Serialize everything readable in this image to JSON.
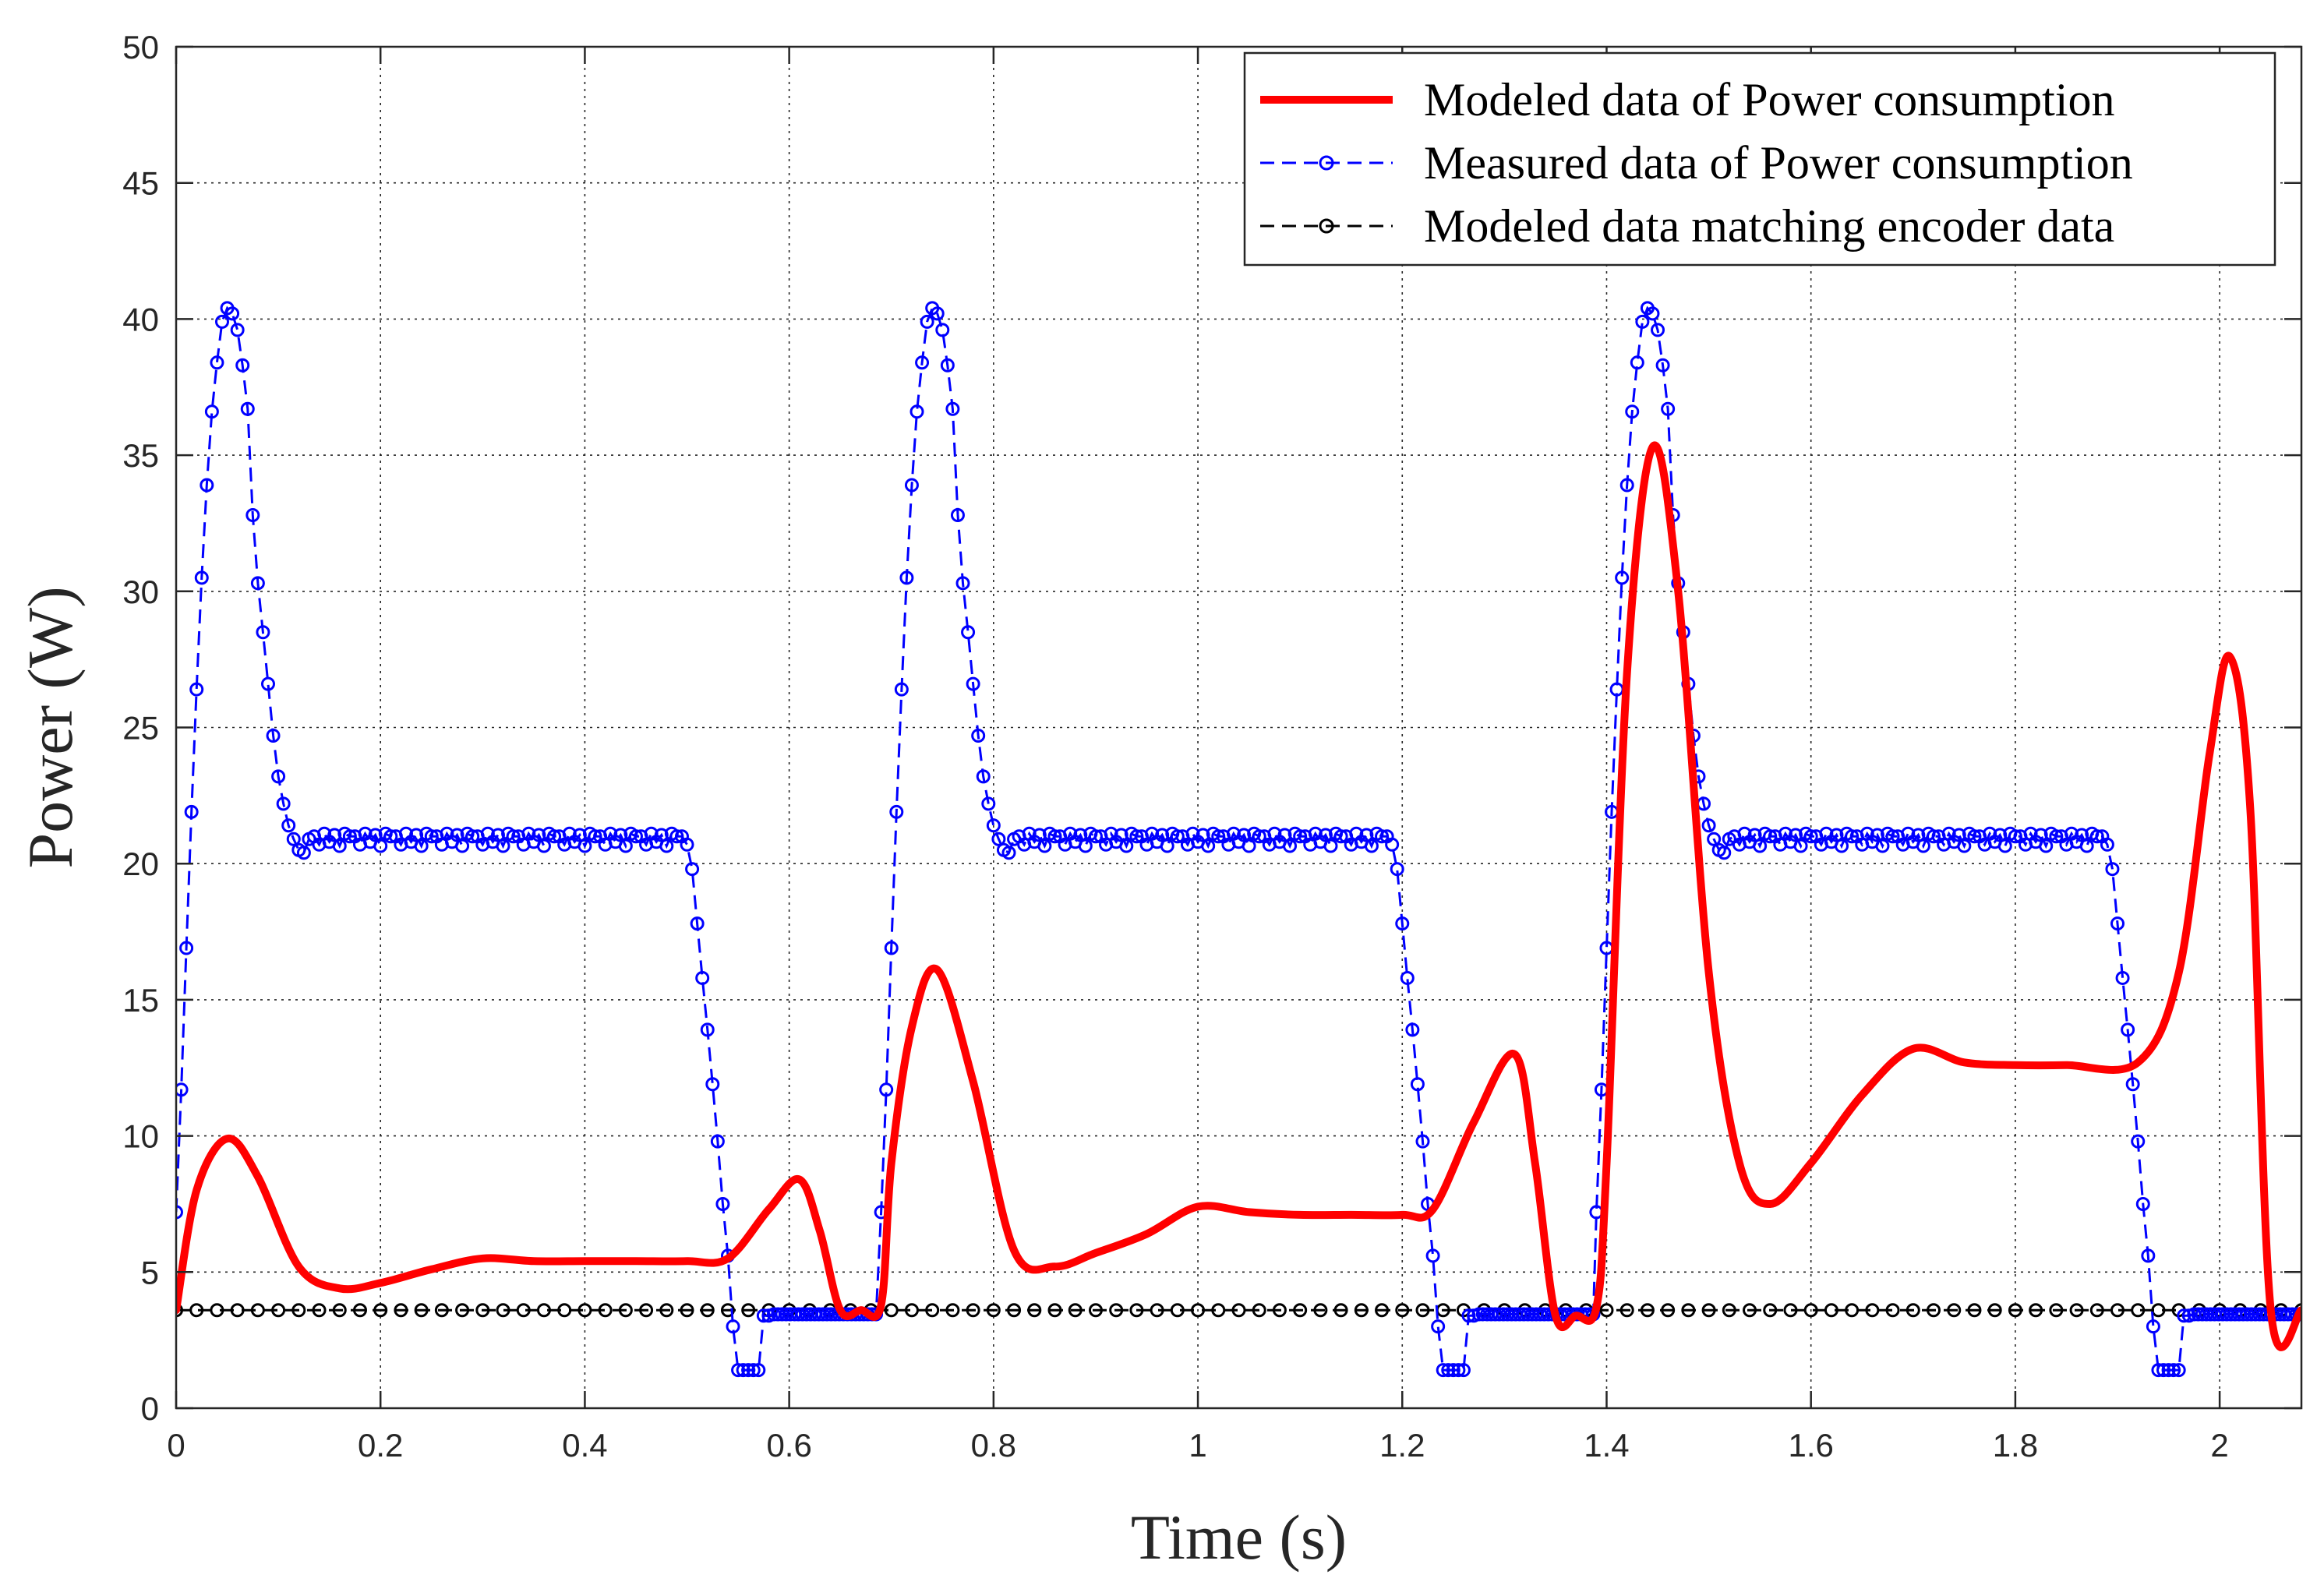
{
  "chart_data": {
    "type": "line",
    "title": "",
    "xlabel": "Time (s)",
    "ylabel": "Power (W)",
    "xlim": [
      0,
      2.08
    ],
    "ylim": [
      0,
      50
    ],
    "grid": true,
    "legend_position": "top-right",
    "x_ticks": [
      0,
      0.2,
      0.4,
      0.6,
      0.8,
      1,
      1.2,
      1.4,
      1.6,
      1.8,
      2
    ],
    "x_tick_labels": [
      "0",
      "0.2",
      "0.4",
      "0.6",
      "0.8",
      "1",
      "1.2",
      "1.4",
      "1.6",
      "1.8",
      "2"
    ],
    "y_ticks": [
      0,
      5,
      10,
      15,
      20,
      25,
      30,
      35,
      40,
      45,
      50
    ],
    "y_tick_labels": [
      "0",
      "5",
      "10",
      "15",
      "20",
      "25",
      "30",
      "35",
      "40",
      "45",
      "50"
    ],
    "series": [
      {
        "name": "Modeled data of Power consumption",
        "color": "#ff0000",
        "style": "solid",
        "marker": "none",
        "x": [
          0,
          0.02,
          0.05,
          0.08,
          0.12,
          0.16,
          0.2,
          0.25,
          0.3,
          0.35,
          0.4,
          0.45,
          0.5,
          0.54,
          0.58,
          0.61,
          0.63,
          0.65,
          0.67,
          0.69,
          0.7,
          0.72,
          0.745,
          0.78,
          0.82,
          0.86,
          0.9,
          0.95,
          1.0,
          1.05,
          1.1,
          1.15,
          1.2,
          1.23,
          1.27,
          1.31,
          1.33,
          1.35,
          1.37,
          1.39,
          1.4,
          1.42,
          1.445,
          1.47,
          1.5,
          1.53,
          1.56,
          1.6,
          1.65,
          1.7,
          1.75,
          1.8,
          1.85,
          1.92,
          1.96,
          1.99,
          2.01,
          2.03,
          2.05,
          2.08
        ],
        "y": [
          3.6,
          8.0,
          9.9,
          8.5,
          5.2,
          4.4,
          4.6,
          5.1,
          5.5,
          5.4,
          5.4,
          5.4,
          5.4,
          5.5,
          7.3,
          8.4,
          6.5,
          3.6,
          3.6,
          3.8,
          9.0,
          14.0,
          16.1,
          12.0,
          5.8,
          5.2,
          5.7,
          6.4,
          7.4,
          7.2,
          7.1,
          7.1,
          7.1,
          7.3,
          10.5,
          13.0,
          9.0,
          3.4,
          3.4,
          3.7,
          9.0,
          27.0,
          35.3,
          30.0,
          16.0,
          9.0,
          7.5,
          9.0,
          11.5,
          13.2,
          12.7,
          12.6,
          12.6,
          12.7,
          16.0,
          24.0,
          27.6,
          22.0,
          3.6,
          3.6
        ]
      },
      {
        "name": "Measured data of Power consumption",
        "color": "#0000ff",
        "style": "dashed",
        "marker": "circle"
      },
      {
        "name": "Modeled data matching encoder data",
        "color": "#000000",
        "style": "dashed",
        "marker": "circle",
        "constant_value": 3.6,
        "x_range": [
          0,
          2.08
        ],
        "marker_spacing": 0.02
      }
    ],
    "measured_pattern": {
      "cycle_starts": [
        0,
        0.69,
        1.39
      ],
      "rise_x": [
        0,
        0.005,
        0.01,
        0.015,
        0.02,
        0.025,
        0.03,
        0.035,
        0.04,
        0.045,
        0.05,
        0.055,
        0.06,
        0.065,
        0.07,
        0.075,
        0.08,
        0.085,
        0.09,
        0.095,
        0.1,
        0.105,
        0.11,
        0.115,
        0.12,
        0.125,
        0.13
      ],
      "rise_y": [
        7.2,
        11.7,
        16.9,
        21.9,
        26.4,
        30.5,
        33.9,
        36.6,
        38.4,
        39.9,
        40.4,
        40.2,
        39.6,
        38.3,
        36.7,
        32.8,
        30.3,
        28.5,
        26.6,
        24.7,
        23.2,
        22.2,
        21.4,
        20.9,
        20.5,
        20.4,
        20.9
      ],
      "plateau_start_offset": 0.135,
      "plateau_end_offset": 0.495,
      "plateau_value": 21.0,
      "plateau_step": 0.005,
      "fall_x_offset": [
        0.5,
        0.505,
        0.51,
        0.515,
        0.52,
        0.525,
        0.53,
        0.535,
        0.54,
        0.545,
        0.55,
        0.555
      ],
      "fall_y": [
        20.7,
        19.8,
        17.8,
        15.8,
        13.9,
        11.9,
        9.8,
        7.5,
        5.6,
        3.0,
        1.4,
        1.4
      ],
      "low_x_offset": [
        0.56,
        0.565,
        0.57,
        0.575,
        0.58
      ],
      "low_y": [
        1.4,
        1.4,
        1.4,
        3.4,
        3.4
      ],
      "rest_value": 3.45,
      "rest_end_offset": 0.685,
      "tail_start": 1.975,
      "tail_end": 2.08
    },
    "legend": [
      "Modeled data of Power consumption",
      "Measured data of Power consumption",
      "Modeled data matching encoder data"
    ]
  }
}
